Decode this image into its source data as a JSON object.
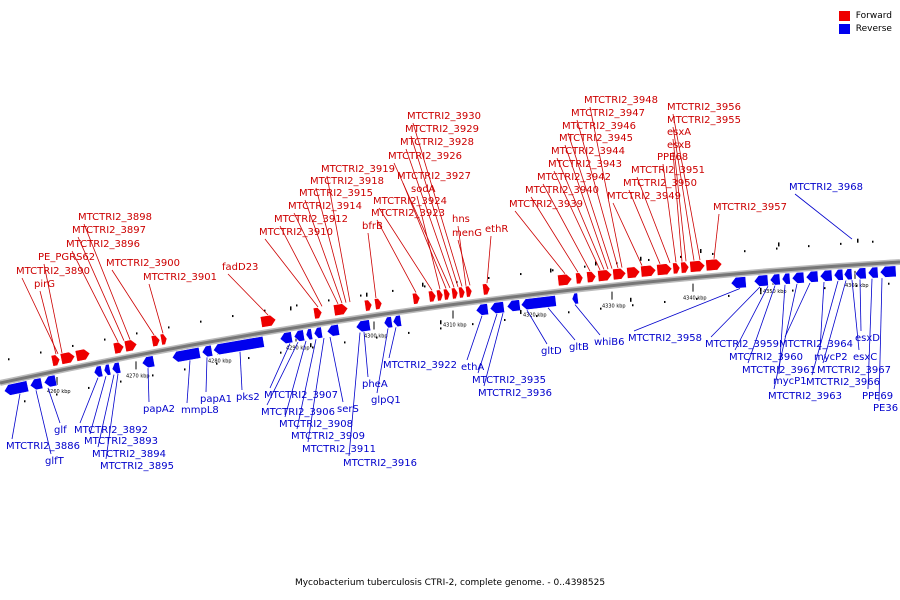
{
  "caption": "Mycobacterium tuberculosis CTRI-2, complete genome. - 0..4398525",
  "legend": [
    {
      "label": "Forward",
      "color": "#ee0000"
    },
    {
      "label": "Reverse",
      "color": "#0000ee"
    }
  ],
  "colors": {
    "forward": "#ee0000",
    "reverse": "#0000ee",
    "forward_text": "#cc0000",
    "reverse_text": "#0000cc",
    "backbone": "#777777"
  },
  "ticks": [
    "4260 kbp",
    "4270 kbp",
    "4280 kbp",
    "4290 kbp",
    "4300 kbp",
    "4310 kbp",
    "4320 kbp",
    "4330 kbp",
    "4340 kbp",
    "4350 kbp",
    "4360 kbp"
  ],
  "forward_labels": [
    "pirG",
    "MTCTRI2_3890",
    "PE_PGRS62",
    "MTCTRI2_3896",
    "MTCTRI2_3897",
    "MTCTRI2_3898",
    "MTCTRI2_3900",
    "MTCTRI2_3901",
    "fadD23",
    "MTCTRI2_3910",
    "MTCTRI2_3912",
    "MTCTRI2_3914",
    "MTCTRI2_3915",
    "MTCTRI2_3918",
    "MTCTRI2_3919",
    "bfrB",
    "MTCTRI2_3923",
    "MTCTRI2_3924",
    "sodA",
    "MTCTRI2_3927",
    "MTCTRI2_3926",
    "MTCTRI2_3928",
    "MTCTRI2_3929",
    "MTCTRI2_3930",
    "hns",
    "menG",
    "ethR",
    "MTCTRI2_3939",
    "MTCTRI2_3940",
    "MTCTRI2_3942",
    "MTCTRI2_3943",
    "MTCTRI2_3944",
    "MTCTRI2_3945",
    "MTCTRI2_3946",
    "MTCTRI2_3947",
    "MTCTRI2_3948",
    "MTCTRI2_3949",
    "MTCTRI2_3950",
    "MTCTRI2_3951",
    "PPE68",
    "esxB",
    "esxA",
    "MTCTRI2_3955",
    "MTCTRI2_3956",
    "MTCTRI2_3957"
  ],
  "reverse_labels": [
    "MTCTRI2_3886",
    "glfT",
    "glf",
    "MTCTRI2_3892",
    "MTCTRI2_3893",
    "MTCTRI2_3894",
    "MTCTRI2_3895",
    "papA2",
    "mmpL8",
    "papA1",
    "pks2",
    "MTCTRI2_3907",
    "MTCTRI2_3906",
    "MTCTRI2_3908",
    "MTCTRI2_3909",
    "MTCTRI2_3911",
    "serS",
    "MTCTRI2_3916",
    "pheA",
    "glpQ1",
    "MTCTRI2_3922",
    "ethA",
    "MTCTRI2_3935",
    "MTCTRI2_3936",
    "gltD",
    "gltB",
    "whiB6",
    "MTCTRI2_3958",
    "MTCTRI2_3959",
    "MTCTRI2_3960",
    "MTCTRI2_3961",
    "mycP1",
    "MTCTRI2_3963",
    "MTCTRI2_3964",
    "mycP2",
    "MTCTRI2_3966",
    "MTCTRI2_3967",
    "esxC",
    "esxD",
    "PPE69",
    "PE36",
    "MTCTRI2_3968"
  ]
}
